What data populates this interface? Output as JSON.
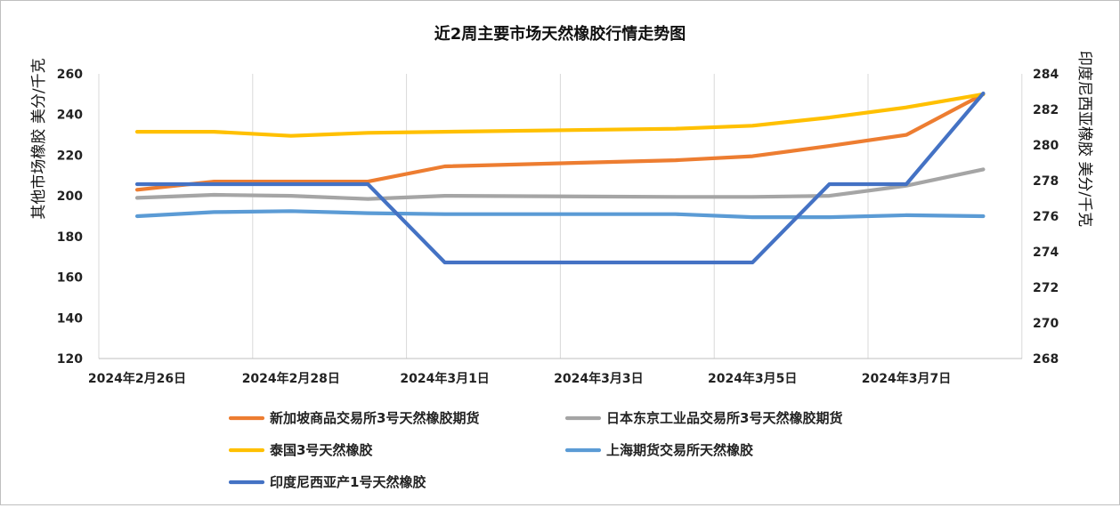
{
  "chart_data": {
    "type": "line",
    "title": "近2周主要市场天然橡胶行情走势图",
    "ylabel_left": "其他市场橡胶  美分/千克",
    "ylabel_right": "印度尼西亚橡胶  美分/千克",
    "ylim_left": [
      120,
      260
    ],
    "ylim_right": [
      268,
      284
    ],
    "yticks_left": [
      "120",
      "140",
      "160",
      "180",
      "200",
      "220",
      "240",
      "260"
    ],
    "yticks_right": [
      "268",
      "270",
      "272",
      "274",
      "276",
      "278",
      "280",
      "282",
      "284"
    ],
    "x": [
      "2024-02-26",
      "2024-02-27",
      "2024-02-28",
      "2024-02-29",
      "2024-03-01",
      "2024-03-04",
      "2024-03-05",
      "2024-03-06",
      "2024-03-07",
      "2024-03-08"
    ],
    "x_days": [
      0,
      1,
      2,
      3,
      4,
      7,
      8,
      9,
      10,
      11
    ],
    "xtick_labels": [
      {
        "day": 0,
        "label": "2024年2月26日"
      },
      {
        "day": 2,
        "label": "2024年2月28日"
      },
      {
        "day": 4,
        "label": "2024年3月1日"
      },
      {
        "day": 6,
        "label": "2024年3月3日"
      },
      {
        "day": 8,
        "label": "2024年3月5日"
      },
      {
        "day": 10,
        "label": "2024年3月7日"
      }
    ],
    "grid": "vertical",
    "legend_position": "bottom",
    "series": [
      {
        "name": "新加坡商品交易所3号天然橡胶期货",
        "axis": "left",
        "color": "#ED7D31",
        "values": [
          203,
          207,
          207,
          207,
          214.5,
          217.5,
          219.5,
          224.5,
          230,
          250
        ]
      },
      {
        "name": "日本东京工业品交易所3号天然橡胶期货",
        "axis": "left",
        "color": "#A5A5A5",
        "values": [
          199,
          200.5,
          200,
          198.5,
          200,
          199.5,
          199.5,
          200,
          205,
          213
        ]
      },
      {
        "name": "泰国3号天然橡胶",
        "axis": "left",
        "color": "#FFC000",
        "values": [
          231.5,
          231.5,
          229.5,
          231,
          231.5,
          233,
          234.5,
          238.5,
          243.5,
          250
        ]
      },
      {
        "name": "上海期货交易所天然橡胶",
        "axis": "left",
        "color": "#5B9BD5",
        "values": [
          190,
          192,
          192.5,
          191.5,
          191,
          191,
          189.5,
          189.5,
          190.5,
          190
        ]
      },
      {
        "name": "印度尼西亚产1号天然橡胶",
        "axis": "right",
        "color": "#4472C4",
        "values": [
          277.8,
          277.8,
          277.8,
          277.8,
          273.4,
          273.4,
          273.4,
          277.8,
          277.8,
          282.9
        ]
      }
    ]
  }
}
